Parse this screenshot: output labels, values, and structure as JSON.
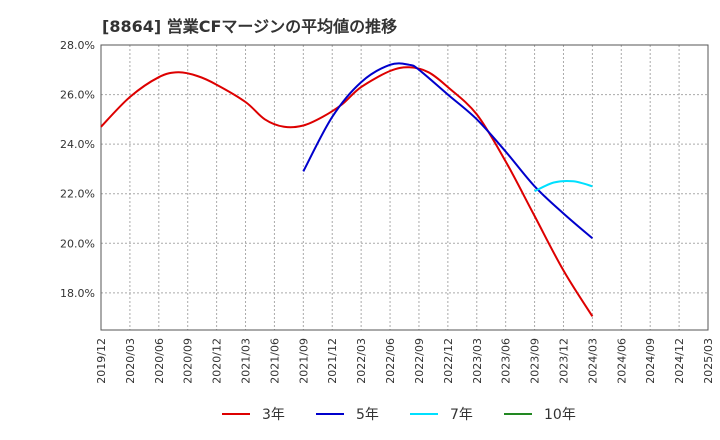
{
  "chart_data": {
    "type": "line",
    "title": "[8864]  営業CFマージンの平均値の推移",
    "xlabel": "",
    "ylabel": "",
    "ylim": [
      16.5,
      28.0
    ],
    "yticks": [
      18.0,
      20.0,
      22.0,
      24.0,
      26.0,
      28.0
    ],
    "ytick_labels": [
      "18.0%",
      "20.0%",
      "22.0%",
      "24.0%",
      "26.0%",
      "28.0%"
    ],
    "xticks": [
      "2019/12",
      "2020/03",
      "2020/06",
      "2020/09",
      "2020/12",
      "2021/03",
      "2021/06",
      "2021/09",
      "2021/12",
      "2022/03",
      "2022/06",
      "2022/09",
      "2022/12",
      "2023/03",
      "2023/06",
      "2023/09",
      "2023/12",
      "2024/03",
      "2024/06",
      "2024/09",
      "2024/12",
      "2025/03"
    ],
    "grid": true,
    "legend_position": "bottom",
    "series": [
      {
        "name": "3年",
        "color": "#dd0000",
        "points": [
          [
            "2019/12",
            24.7
          ],
          [
            "2020/03",
            25.9
          ],
          [
            "2020/06",
            26.7
          ],
          [
            "2020/08",
            26.9
          ],
          [
            "2020/10",
            26.75
          ],
          [
            "2020/12",
            26.4
          ],
          [
            "2021/03",
            25.7
          ],
          [
            "2021/05",
            25.0
          ],
          [
            "2021/07",
            24.7
          ],
          [
            "2021/09",
            24.75
          ],
          [
            "2021/11",
            25.1
          ],
          [
            "2022/01",
            25.6
          ],
          [
            "2022/03",
            26.3
          ],
          [
            "2022/06",
            26.95
          ],
          [
            "2022/08",
            27.1
          ],
          [
            "2022/10",
            26.9
          ],
          [
            "2022/12",
            26.3
          ],
          [
            "2023/03",
            25.2
          ],
          [
            "2023/06",
            23.3
          ],
          [
            "2023/09",
            21.1
          ],
          [
            "2023/12",
            18.9
          ],
          [
            "2024/03",
            17.05
          ]
        ]
      },
      {
        "name": "5年",
        "color": "#0000cc",
        "points": [
          [
            "2021/09",
            22.9
          ],
          [
            "2021/12",
            25.1
          ],
          [
            "2022/03",
            26.5
          ],
          [
            "2022/06",
            27.2
          ],
          [
            "2022/08",
            27.2
          ],
          [
            "2022/09",
            27.0
          ],
          [
            "2022/12",
            26.0
          ],
          [
            "2023/03",
            25.0
          ],
          [
            "2023/06",
            23.7
          ],
          [
            "2023/09",
            22.3
          ],
          [
            "2023/12",
            21.2
          ],
          [
            "2024/03",
            20.2
          ]
        ]
      },
      {
        "name": "7年",
        "color": "#00e0ff",
        "points": [
          [
            "2023/09",
            22.1
          ],
          [
            "2023/11",
            22.45
          ],
          [
            "2024/01",
            22.5
          ],
          [
            "2024/03",
            22.3
          ]
        ]
      },
      {
        "name": "10年",
        "color": "#228822",
        "points": []
      }
    ]
  }
}
